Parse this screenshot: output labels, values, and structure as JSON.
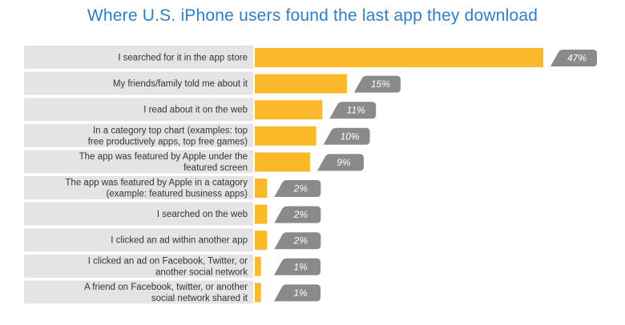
{
  "chart_data": {
    "type": "bar",
    "orientation": "horizontal",
    "title": "Where U.S. iPhone users found the last app they download",
    "categories": [
      [
        "I searched for it in the app store"
      ],
      [
        "My friends/family told me about it"
      ],
      [
        "I read about it on the web"
      ],
      [
        "In a category top chart (examples: top",
        "free productively apps, top free games)"
      ],
      [
        "The app was featured by Apple under the",
        "featured screen"
      ],
      [
        "The app was featured by Apple in a catagory",
        "(example: featured business apps)"
      ],
      [
        "I searched on the web"
      ],
      [
        "I clicked an ad within another app"
      ],
      [
        "I clicked an ad on Facebook, Twitter, or",
        "another social network"
      ],
      [
        "A friend on Facebook, twitter, or another",
        "social network shared it"
      ]
    ],
    "values": [
      47,
      15,
      11,
      10,
      9,
      2,
      2,
      2,
      1,
      1
    ],
    "value_labels": [
      "47%",
      "15%",
      "11%",
      "10%",
      "9%",
      "2%",
      "2%",
      "2%",
      "1%",
      "1%"
    ],
    "colors": {
      "bar": "#fbb829",
      "label_band": "#e4e4e6",
      "badge": "#8a8a8a",
      "title": "#2a7fd4"
    }
  }
}
